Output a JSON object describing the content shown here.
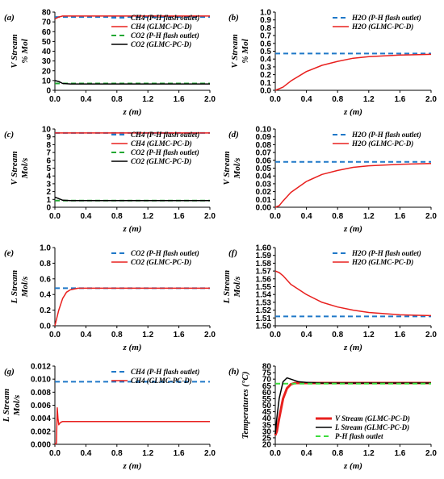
{
  "colors": {
    "blue": "#1f78c8",
    "red": "#e8201e",
    "green": "#22a833",
    "black": "#000000",
    "lightgreen": "#3ddc3d"
  },
  "chart_data": [
    {
      "panel": "(a)",
      "type": "line",
      "ylabel": [
        "V Stream",
        "% Mol"
      ],
      "xlabel": "z (m)",
      "xlim": [
        0,
        2
      ],
      "ylim": [
        0,
        80
      ],
      "xticks": [
        "0.0",
        "0.4",
        "0.8",
        "1.2",
        "1.6",
        "2.0"
      ],
      "yticks": [
        "0",
        "10",
        "20",
        "30",
        "40",
        "50",
        "60",
        "70",
        "80"
      ],
      "legend_position": "top-right",
      "series": [
        {
          "name": "CH4 (P-H flash outlet)",
          "color": "blue",
          "dash": true,
          "x": [
            0,
            2
          ],
          "y": [
            75,
            75
          ]
        },
        {
          "name": "CH4 (GLMC-PC-D)",
          "color": "red",
          "dash": false,
          "x": [
            0,
            0.05,
            0.1,
            0.2,
            0.4,
            1.0,
            2.0
          ],
          "y": [
            73,
            75,
            76,
            76,
            76,
            76,
            76
          ]
        },
        {
          "name": "CO2 (P-H flash outlet)",
          "color": "green",
          "dash": true,
          "x": [
            0,
            2
          ],
          "y": [
            7,
            7
          ]
        },
        {
          "name": "CO2 (GLMC-PC-D)",
          "color": "black",
          "dash": false,
          "x": [
            0,
            0.05,
            0.1,
            0.2,
            0.4,
            1.0,
            2.0
          ],
          "y": [
            10,
            9,
            7,
            6.5,
            6.5,
            6.5,
            6.5
          ]
        }
      ]
    },
    {
      "panel": "(b)",
      "type": "line",
      "ylabel": [
        "V Stream",
        "% Mol"
      ],
      "xlabel": "z (m)",
      "xlim": [
        0,
        2
      ],
      "ylim": [
        0,
        1
      ],
      "xticks": [
        "0.0",
        "0.4",
        "0.8",
        "1.2",
        "1.6",
        "2.0"
      ],
      "yticks": [
        "0.0",
        "0.1",
        "0.2",
        "0.3",
        "0.4",
        "0.5",
        "0.6",
        "0.7",
        "0.8",
        "0.9",
        "1.0"
      ],
      "legend_position": "top-right",
      "series": [
        {
          "name": "H2O (P-H flash outlet)",
          "color": "blue",
          "dash": true,
          "x": [
            0,
            2
          ],
          "y": [
            0.47,
            0.47
          ]
        },
        {
          "name": "H2O (GLMC-PC-D)",
          "color": "red",
          "dash": false,
          "x": [
            0,
            0.1,
            0.2,
            0.4,
            0.6,
            0.8,
            1.0,
            1.2,
            1.6,
            2.0
          ],
          "y": [
            0,
            0.04,
            0.12,
            0.24,
            0.32,
            0.37,
            0.41,
            0.43,
            0.45,
            0.46
          ]
        }
      ]
    },
    {
      "panel": "(c)",
      "type": "line",
      "ylabel": [
        "V Stream",
        "Mol/s"
      ],
      "xlabel": "z (m)",
      "xlim": [
        0,
        2
      ],
      "ylim": [
        0,
        10
      ],
      "xticks": [
        "0.0",
        "0.4",
        "0.8",
        "1.2",
        "1.6",
        "2.0"
      ],
      "yticks": [
        "0",
        "1",
        "2",
        "3",
        "4",
        "5",
        "6",
        "7",
        "8",
        "9",
        "10"
      ],
      "legend_position": "top-right",
      "series": [
        {
          "name": "CH4 (P-H flash outlet)",
          "color": "blue",
          "dash": true,
          "x": [
            0,
            2
          ],
          "y": [
            9.5,
            9.5
          ]
        },
        {
          "name": "CH4 (GLMC-PC-D)",
          "color": "red",
          "dash": false,
          "x": [
            0,
            0.1,
            0.2,
            2.0
          ],
          "y": [
            9.5,
            9.5,
            9.5,
            9.5
          ]
        },
        {
          "name": "CO2 (P-H flash outlet)",
          "color": "green",
          "dash": true,
          "x": [
            0,
            2
          ],
          "y": [
            0.85,
            0.85
          ]
        },
        {
          "name": "CO2 (GLMC-PC-D)",
          "color": "black",
          "dash": false,
          "x": [
            0,
            0.05,
            0.1,
            0.2,
            0.4,
            2.0
          ],
          "y": [
            1.3,
            1.1,
            0.9,
            0.85,
            0.85,
            0.85
          ]
        }
      ]
    },
    {
      "panel": "(d)",
      "type": "line",
      "ylabel": [
        "V Stream",
        "Mol/s"
      ],
      "xlabel": "z (m)",
      "xlim": [
        0,
        2
      ],
      "ylim": [
        0,
        0.1
      ],
      "xticks": [
        "0.0",
        "0.4",
        "0.8",
        "1.2",
        "1.6",
        "2.0"
      ],
      "yticks": [
        "0.00",
        "0.01",
        "0.02",
        "0.03",
        "0.04",
        "0.05",
        "0.06",
        "0.07",
        "0.08",
        "0.09",
        "0.10"
      ],
      "legend_position": "top-right",
      "series": [
        {
          "name": "H2O (P-H flash outlet)",
          "color": "blue",
          "dash": true,
          "x": [
            0,
            2
          ],
          "y": [
            0.058,
            0.058
          ]
        },
        {
          "name": "H2O (GLMC-PC-D)",
          "color": "red",
          "dash": false,
          "x": [
            0,
            0.05,
            0.1,
            0.2,
            0.4,
            0.6,
            0.8,
            1.0,
            1.2,
            1.6,
            2.0
          ],
          "y": [
            0,
            0.002,
            0.008,
            0.019,
            0.033,
            0.042,
            0.047,
            0.051,
            0.053,
            0.055,
            0.056
          ]
        }
      ]
    },
    {
      "panel": "(e)",
      "type": "line",
      "ylabel": [
        "L Stream",
        "Mol/s"
      ],
      "xlabel": "z (m)",
      "xlim": [
        0,
        2
      ],
      "ylim": [
        0,
        1
      ],
      "xticks": [
        "0.0",
        "0.4",
        "0.8",
        "1.2",
        "1.6",
        "2.0"
      ],
      "yticks": [
        "0.0",
        "0.2",
        "0.4",
        "0.6",
        "0.8",
        "1.0"
      ],
      "legend_position": "top-right",
      "series": [
        {
          "name": "CO2 (P-H flash outlet)",
          "color": "blue",
          "dash": true,
          "x": [
            0,
            2
          ],
          "y": [
            0.48,
            0.48
          ]
        },
        {
          "name": "CO2 (GLMC-PC-D)",
          "color": "red",
          "dash": false,
          "x": [
            0,
            0.05,
            0.1,
            0.15,
            0.2,
            0.25,
            0.3,
            0.4,
            2.0
          ],
          "y": [
            0,
            0.2,
            0.35,
            0.43,
            0.46,
            0.47,
            0.48,
            0.48,
            0.48
          ]
        }
      ]
    },
    {
      "panel": "(f)",
      "type": "line",
      "ylabel": [
        "L Stream",
        "Mol/s"
      ],
      "xlabel": "z (m)",
      "xlim": [
        0,
        2
      ],
      "ylim": [
        1.5,
        1.6
      ],
      "xticks": [
        "0.0",
        "0.4",
        "0.8",
        "1.2",
        "1.6",
        "2.0"
      ],
      "yticks": [
        "1.50",
        "1.51",
        "1.52",
        "1.53",
        "1.54",
        "1.55",
        "1.56",
        "1.57",
        "1.58",
        "1.59",
        "1.60"
      ],
      "legend_position": "top-right",
      "series": [
        {
          "name": "H2O (P-H flash outlet)",
          "color": "blue",
          "dash": true,
          "x": [
            0,
            2
          ],
          "y": [
            1.512,
            1.512
          ]
        },
        {
          "name": "H2O (GLMC-PC-D)",
          "color": "red",
          "dash": false,
          "x": [
            0,
            0.05,
            0.1,
            0.2,
            0.4,
            0.6,
            0.8,
            1.0,
            1.2,
            1.6,
            2.0
          ],
          "y": [
            1.57,
            1.568,
            1.564,
            1.553,
            1.54,
            1.53,
            1.524,
            1.52,
            1.517,
            1.514,
            1.513
          ]
        }
      ]
    },
    {
      "panel": "(g)",
      "type": "line",
      "ylabel": [
        "L Stream",
        "Mol/s"
      ],
      "xlabel": "z (m)",
      "xlim": [
        0,
        2
      ],
      "ylim": [
        0,
        0.012
      ],
      "xticks": [
        "0.0",
        "0.4",
        "0.8",
        "1.2",
        "1.6",
        "2.0"
      ],
      "yticks": [
        "0.000",
        "0.002",
        "0.004",
        "0.006",
        "0.008",
        "0.010",
        "0.012"
      ],
      "legend_position": "top-right",
      "series": [
        {
          "name": "CH4 (P-H flash outlet)",
          "color": "blue",
          "dash": true,
          "x": [
            0,
            2
          ],
          "y": [
            0.0096,
            0.0096
          ]
        },
        {
          "name": "CH4 (GLMC-PC-D)",
          "color": "red",
          "dash": false,
          "x": [
            0,
            0.02,
            0.03,
            0.04,
            0.05,
            0.06,
            0.08,
            0.1,
            0.15,
            0.2,
            2.0
          ],
          "y": [
            0,
            0.0002,
            0.0056,
            0.004,
            0.003,
            0.0032,
            0.0034,
            0.0035,
            0.0035,
            0.0035,
            0.0035
          ]
        }
      ]
    },
    {
      "panel": "(h)",
      "type": "line",
      "ylabel": [
        "Temperatures (°C)"
      ],
      "xlabel": "z (m)",
      "xlim": [
        0,
        2
      ],
      "ylim": [
        20,
        80
      ],
      "xticks": [
        "0.0",
        "0.4",
        "0.8",
        "1.2",
        "1.6",
        "2.0"
      ],
      "yticks": [
        "20",
        "25",
        "30",
        "35",
        "40",
        "45",
        "50",
        "55",
        "60",
        "65",
        "70",
        "75",
        "80"
      ],
      "legend_position": "bottom-right",
      "series": [
        {
          "name": "V Stream (GLMC-PC-D)",
          "color": "red",
          "dash": false,
          "thick": true,
          "x": [
            0,
            0.02,
            0.05,
            0.1,
            0.15,
            0.2,
            0.25,
            0.3,
            0.4,
            2.0
          ],
          "y": [
            27,
            30,
            40,
            55,
            63,
            66,
            67,
            67,
            67,
            67
          ]
        },
        {
          "name": "L Stream (GLMC-PC-D)",
          "color": "black",
          "dash": false,
          "x": [
            0,
            0.02,
            0.05,
            0.1,
            0.15,
            0.2,
            0.3,
            0.4,
            0.6,
            2.0
          ],
          "y": [
            28,
            40,
            55,
            68,
            71,
            70,
            68,
            67.5,
            67,
            67
          ]
        },
        {
          "name": "P-H flash outlet",
          "color": "lightgreen",
          "dash": true,
          "x": [
            0,
            2
          ],
          "y": [
            66.5,
            66.5
          ]
        }
      ]
    }
  ]
}
